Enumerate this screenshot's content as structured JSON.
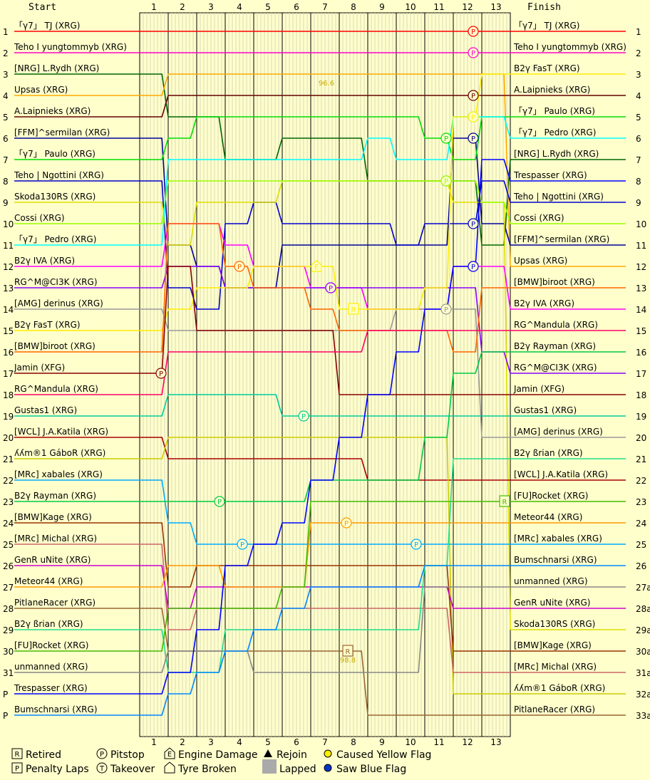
{
  "chart_data": {
    "type": "line",
    "title": "",
    "start_label": "Start",
    "finish_label": "Finish",
    "laps": [
      "1",
      "2",
      "3",
      "4",
      "5",
      "6",
      "7",
      "8",
      "9",
      "10",
      "11",
      "12",
      "13"
    ],
    "start_grid": [
      "「γ7」 TJ (XRG)",
      "Teho I yungtommyb (XRG)",
      "[NRG] L.Rydh (XRG)",
      "Upsas (XRG)",
      "A.Laipnieks (XRG)",
      "[FFM]^sermilan (XRG)",
      "「γ7」 Paulo (XRG)",
      "Teho | Ngottini (XRG)",
      "Skoda130RS (XRG)",
      "Cossi (XRG)",
      "「γ7」 Pedro (XRG)",
      "B2γ IVA (XRG)",
      "RG^M@CI3K (XRG)",
      "[AMG] derinus (XRG)",
      "B2γ FasT (XRG)",
      "[BMW]biroot (XRG)",
      "Jamin (XFG)",
      "RG^Mandula (XRG)",
      "Gustas1 (XRG)",
      "[WCL] J.A.Katila (XRG)",
      "ʎʎm®1 GáboR (XRG)",
      "[MRc] xabales (XRG)",
      "B2γ Rayman (XRG)",
      "[BMW]Kage (XRG)",
      "[MRc] Michal (XRG)",
      "GenR uNite (XRG)",
      "Meteor44 (XRG)",
      "PitlaneRacer (XRG)",
      "B2γ ßrian (XRG)",
      "[FU]Rocket (XRG)",
      "unmanned (XRG)",
      "Trespasser (XRG)",
      "Bumschnarsi (XRG)"
    ],
    "start_positions": [
      "1",
      "2",
      "3",
      "4",
      "5",
      "6",
      "7",
      "8",
      "9",
      "10",
      "11",
      "12",
      "13",
      "14",
      "15",
      "16",
      "17",
      "18",
      "19",
      "20",
      "21",
      "22",
      "23",
      "24",
      "25",
      "26",
      "27",
      "28",
      "29",
      "30",
      "31",
      "P",
      "P"
    ],
    "finish_order": [
      "「γ7」 TJ (XRG)",
      "Teho I yungtommyb (XRG)",
      "B2γ FasT (XRG)",
      "A.Laipnieks (XRG)",
      "「γ7」 Paulo (XRG)",
      "「γ7」 Pedro (XRG)",
      "[NRG] L.Rydh (XRG)",
      "Trespasser (XRG)",
      "Teho | Ngottini (XRG)",
      "Cossi (XRG)",
      "[FFM]^sermilan (XRG)",
      "Upsas (XRG)",
      "[BMW]biroot (XRG)",
      "B2γ IVA (XRG)",
      "RG^Mandula (XRG)",
      "B2γ Rayman (XRG)",
      "RG^M@CI3K (XRG)",
      "Jamin (XFG)",
      "Gustas1 (XRG)",
      "[AMG] derinus (XRG)",
      "B2γ ßrian (XRG)",
      "[WCL] J.A.Katila (XRG)",
      "[FU]Rocket (XRG)",
      "Meteor44 (XRG)",
      "[MRc] xabales (XRG)",
      "Bumschnarsi (XRG)",
      "unmanned (XRG)",
      "GenR uNite (XRG)",
      "Skoda130RS (XRG)",
      "[BMW]Kage (XRG)",
      "[MRc] Michal (XRG)",
      "ʎʎm®1 GáboR (XRG)",
      "PitlaneRacer (XRG)"
    ],
    "finish_positions": [
      "1",
      "2",
      "3",
      "4",
      "5",
      "6",
      "7",
      "8",
      "9",
      "10",
      "11",
      "12",
      "13",
      "14",
      "15",
      "16",
      "17",
      "18",
      "19",
      "20",
      "21",
      "22",
      "23",
      "24",
      "25",
      "26",
      "27a",
      "28a",
      "29a",
      "30a",
      "31a",
      "32a",
      "33a"
    ],
    "annotations": [
      {
        "label": "96.6",
        "lap": 6.55,
        "row": 3
      },
      {
        "label": "98.8",
        "lap": 7.3,
        "row": 30
      }
    ],
    "legend": [
      {
        "symbol": "R",
        "text": "Retired",
        "style": "square"
      },
      {
        "symbol": "P",
        "text": "Penalty Laps",
        "style": "square"
      },
      {
        "symbol": "P",
        "text": "Pitstop",
        "style": "circle"
      },
      {
        "symbol": "T",
        "text": "Takeover",
        "style": "circle"
      },
      {
        "symbol": "E",
        "text": "Engine Damage",
        "style": "house"
      },
      {
        "symbol": "",
        "text": "Tyre Broken",
        "style": "house"
      },
      {
        "symbol": "",
        "text": "Rejoin",
        "style": "triangle"
      },
      {
        "symbol": "",
        "text": "Lapped",
        "style": "grey"
      },
      {
        "symbol": "",
        "text": "Caused Yellow Flag",
        "style": "yellow"
      },
      {
        "symbol": "",
        "text": "Saw Blue Flag",
        "style": "blue"
      }
    ],
    "drivers": [
      {
        "name": "「γ7」 TJ (XRG)",
        "color": "#ff0000",
        "pos": [
          1,
          1,
          1,
          1,
          1,
          1,
          1,
          1,
          1,
          1,
          1,
          1,
          1,
          1
        ],
        "events": [
          {
            "t": "P",
            "lap": 11.7
          }
        ]
      },
      {
        "name": "Teho I yungtommyb (XRG)",
        "color": "#ff00cc",
        "pos": [
          2,
          2,
          2,
          2,
          2,
          2,
          2,
          2,
          2,
          2,
          2,
          2,
          2,
          2
        ],
        "events": [
          {
            "t": "P",
            "lap": 11.7
          }
        ]
      },
      {
        "name": "[NRG] L.Rydh (XRG)",
        "color": "#006600",
        "pos": [
          3,
          5,
          5,
          7,
          7,
          6,
          6,
          6,
          8,
          8,
          8,
          8,
          11,
          7
        ],
        "events": [
          {
            "t": "P",
            "lap": 10.75
          }
        ]
      },
      {
        "name": "Upsas (XRG)",
        "color": "#ffaa00",
        "pos": [
          4,
          3,
          3,
          3,
          3,
          3,
          3,
          3,
          3,
          3,
          3,
          3,
          3,
          12
        ]
      },
      {
        "name": "A.Laipnieks (XRG)",
        "color": "#660000",
        "pos": [
          5,
          4,
          4,
          4,
          4,
          4,
          4,
          4,
          4,
          4,
          4,
          4,
          4,
          4
        ],
        "events": [
          {
            "t": "P",
            "lap": 11.7
          }
        ]
      },
      {
        "name": "[FFM]^sermilan (XRG)",
        "color": "#000099",
        "pos": [
          6,
          11,
          12,
          13,
          13,
          11,
          11,
          11,
          11,
          11,
          11,
          6,
          10,
          11
        ],
        "events": [
          {
            "t": "P",
            "lap": 11.7
          }
        ]
      },
      {
        "name": "「γ7」 Paulo (XRG)",
        "color": "#00dd00",
        "pos": [
          7,
          6,
          5,
          5,
          5,
          5,
          5,
          5,
          5,
          5,
          6,
          7,
          5,
          5
        ],
        "events": [
          {
            "t": "P",
            "lap": 10.75
          }
        ]
      },
      {
        "name": "Teho | Ngottini (XRG)",
        "color": "#0000cc",
        "pos": [
          8,
          13,
          14,
          10,
          9,
          10,
          10,
          10,
          10,
          11,
          10,
          10,
          8,
          9
        ],
        "events": [
          {
            "t": "P",
            "lap": 11.7
          }
        ]
      },
      {
        "name": "Skoda130RS (XRG)",
        "color": "#dddd00",
        "pos": [
          9,
          11,
          9,
          9,
          9,
          8,
          8,
          8,
          8,
          8,
          8,
          9,
          9,
          29
        ]
      },
      {
        "name": "Cossi (XRG)",
        "color": "#99ff00",
        "pos": [
          10,
          8,
          8,
          8,
          8,
          8,
          8,
          8,
          8,
          8,
          8,
          8,
          9,
          10
        ],
        "events": [
          {
            "t": "P",
            "lap": 10.75
          }
        ]
      },
      {
        "name": "「γ7」 Pedro (XRG)",
        "color": "#00ffff",
        "pos": [
          11,
          7,
          7,
          7,
          7,
          7,
          7,
          7,
          6,
          7,
          7,
          5,
          5,
          6
        ],
        "events": [
          {
            "t": "P",
            "lap": 11.7
          }
        ]
      },
      {
        "name": "B2γ IVA (XRG)",
        "color": "#ff00ff",
        "pos": [
          12,
          10,
          10,
          11,
          12,
          12,
          13,
          13,
          14,
          14,
          14,
          12,
          12,
          14
        ],
        "events": [
          {
            "t": "P",
            "lap": 11.7
          },
          {
            "t": "P",
            "lap": 6.7
          }
        ]
      },
      {
        "name": "RG^M@CI3K (XRG)",
        "color": "#8800ff",
        "pos": [
          13,
          12,
          12,
          13,
          13,
          13,
          13,
          13,
          13,
          13,
          13,
          13,
          16,
          17
        ],
        "events": [
          {
            "t": "P",
            "lap": 6.7
          }
        ]
      },
      {
        "name": "[AMG] derinus (XRG)",
        "color": "#999999",
        "pos": [
          14,
          15,
          15,
          15,
          15,
          15,
          15,
          15,
          15,
          14,
          14,
          14,
          20,
          20
        ],
        "events": [
          {
            "t": "P",
            "lap": 10.75
          }
        ]
      },
      {
        "name": "B2γ FasT (XRG)",
        "color": "#ffee00",
        "pos": [
          15,
          14,
          13,
          13,
          12,
          12,
          12,
          14,
          14,
          14,
          13,
          5,
          3,
          3
        ],
        "events": [
          {
            "t": "E",
            "lap": 6.2
          },
          {
            "t": "P",
            "lap": 11.7
          },
          {
            "t": "R",
            "lap": 7.5
          }
        ]
      },
      {
        "name": "[BMW]biroot (XRG)",
        "color": "#ff6600",
        "pos": [
          16,
          10,
          10,
          12,
          13,
          13,
          14,
          15,
          15,
          15,
          15,
          16,
          13,
          13
        ],
        "events": [
          {
            "t": "P",
            "lap": 3.5
          }
        ]
      },
      {
        "name": "Jamin (XFG)",
        "color": "#880000",
        "pos": [
          17,
          12,
          15,
          15,
          15,
          15,
          15,
          18,
          18,
          18,
          18,
          18,
          18,
          18
        ],
        "events": [
          {
            "t": "P",
            "lap": 0.75
          }
        ]
      },
      {
        "name": "RG^Mandula (XRG)",
        "color": "#ff0066",
        "pos": [
          18,
          16,
          16,
          16,
          16,
          16,
          16,
          16,
          15,
          15,
          15,
          15,
          15,
          15
        ]
      },
      {
        "name": "Gustas1 (XRG)",
        "color": "#00cc99",
        "pos": [
          19,
          18,
          18,
          18,
          18,
          19,
          19,
          19,
          19,
          19,
          19,
          19,
          19,
          19
        ],
        "events": [
          {
            "t": "P",
            "lap": 5.75
          }
        ]
      },
      {
        "name": "[WCL] J.A.Katila (XRG)",
        "color": "#aa0000",
        "pos": [
          20,
          21,
          21,
          21,
          21,
          21,
          21,
          21,
          22,
          22,
          22,
          22,
          22,
          22
        ]
      },
      {
        "name": "ʎʎm®1 GáboR (XRG)",
        "color": "#cccc00",
        "pos": [
          21,
          20,
          20,
          20,
          20,
          20,
          20,
          20,
          20,
          20,
          20,
          32,
          32,
          32
        ]
      },
      {
        "name": "[MRc] xabales (XRG)",
        "color": "#00aaff",
        "pos": [
          22,
          24,
          25,
          25,
          25,
          25,
          25,
          25,
          25,
          25,
          25,
          25,
          25,
          25
        ],
        "events": [
          {
            "t": "P",
            "lap": 3.6
          },
          {
            "t": "P",
            "lap": 9.7
          }
        ]
      },
      {
        "name": "B2γ Rayman (XRG)",
        "color": "#00cc44",
        "pos": [
          23,
          23,
          23,
          23,
          23,
          23,
          22,
          22,
          22,
          22,
          20,
          17,
          16,
          16
        ],
        "events": [
          {
            "t": "P",
            "lap": 2.8
          }
        ]
      },
      {
        "name": "[BMW]Kage (XRG)",
        "color": "#993300",
        "pos": [
          24,
          27,
          26,
          26,
          26,
          26,
          26,
          26,
          26,
          26,
          26,
          30,
          30,
          30
        ]
      },
      {
        "name": "[MRc] Michal (XRG)",
        "color": "#cc6666",
        "pos": [
          25,
          29,
          28,
          28,
          28,
          28,
          28,
          28,
          28,
          28,
          28,
          31,
          31,
          31
        ]
      },
      {
        "name": "GenR uNite (XRG)",
        "color": "#cc00cc",
        "pos": [
          26,
          28,
          27,
          27,
          27,
          27,
          27,
          27,
          27,
          27,
          27,
          28,
          28,
          28
        ]
      },
      {
        "name": "Meteor44 (XRG)",
        "color": "#ff9900",
        "pos": [
          27,
          26,
          26,
          27,
          27,
          27,
          24,
          24,
          24,
          24,
          24,
          24,
          24,
          24
        ],
        "events": [
          {
            "t": "P",
            "lap": 7.25
          }
        ]
      },
      {
        "name": "PitlaneRacer (XRG)",
        "color": "#996633",
        "pos": [
          28,
          30,
          30,
          30,
          30,
          30,
          30,
          30,
          33,
          33,
          33,
          33,
          33,
          33
        ],
        "events": [
          {
            "t": "R",
            "lap": 7.3
          }
        ]
      },
      {
        "name": "B2γ ßrian (XRG)",
        "color": "#22dd88",
        "pos": [
          29,
          31,
          31,
          29,
          29,
          29,
          29,
          29,
          29,
          29,
          26,
          21,
          21,
          21
        ]
      },
      {
        "name": "[FU]Rocket (XRG)",
        "color": "#44bb00",
        "pos": [
          30,
          28,
          28,
          28,
          28,
          27,
          23,
          23,
          23,
          23,
          23,
          23,
          23,
          23
        ],
        "events": [
          {
            "t": "R",
            "lap": 12.8
          }
        ]
      },
      {
        "name": "unmanned (XRG)",
        "color": "#888888",
        "pos": [
          31,
          30,
          30,
          30,
          31,
          31,
          31,
          31,
          31,
          31,
          27,
          27,
          27,
          27
        ]
      },
      {
        "name": "Trespasser (XRG)",
        "color": "#0000ff",
        "pos": [
          32,
          31,
          29,
          26,
          25,
          24,
          22,
          20,
          18,
          16,
          14,
          12,
          7,
          8
        ],
        "events": [
          {
            "t": "P",
            "lap": 11.7
          }
        ]
      },
      {
        "name": "Bumschnarsi (XRG)",
        "color": "#0088ff",
        "pos": [
          33,
          32,
          31,
          30,
          29,
          28,
          27,
          27,
          27,
          27,
          26,
          26,
          26,
          26
        ]
      }
    ]
  }
}
